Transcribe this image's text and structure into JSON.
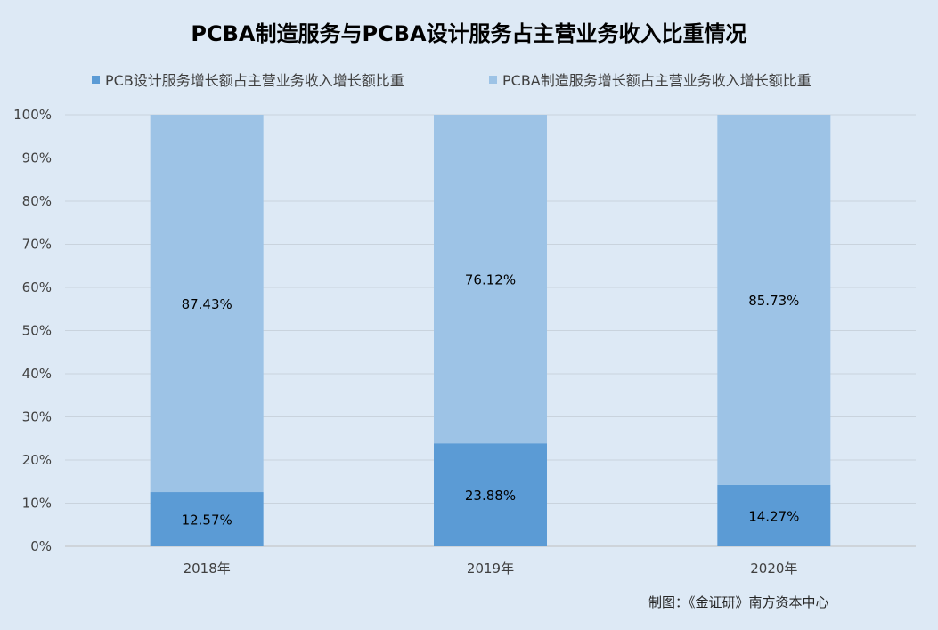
{
  "chart_data": {
    "type": "bar",
    "stacked": true,
    "percent_stacked": true,
    "title": "PCBA制造服务与PCBA设计服务占主营业务收入比重情况",
    "categories": [
      "2018年",
      "2019年",
      "2020年"
    ],
    "series": [
      {
        "name": "PCB设计服务增长额占主营业务收入增长额比重",
        "values": [
          12.57,
          23.88,
          14.27
        ],
        "labels": [
          "12.57%",
          "23.88%",
          "14.27%"
        ],
        "color": "#5b9bd5"
      },
      {
        "name": "PCBA制造服务增长额占主营业务收入增长额比重",
        "values": [
          87.43,
          76.12,
          85.73
        ],
        "labels": [
          "87.43%",
          "76.12%",
          "85.73%"
        ],
        "color": "#9dc3e6"
      }
    ],
    "yticks": [
      "0%",
      "10%",
      "20%",
      "30%",
      "40%",
      "50%",
      "60%",
      "70%",
      "80%",
      "90%",
      "100%"
    ],
    "ylim": [
      0,
      100
    ],
    "grid": true,
    "legend_position": "top",
    "background": "#dde9f5"
  },
  "credit": "制图：《金证研》南方资本中心"
}
